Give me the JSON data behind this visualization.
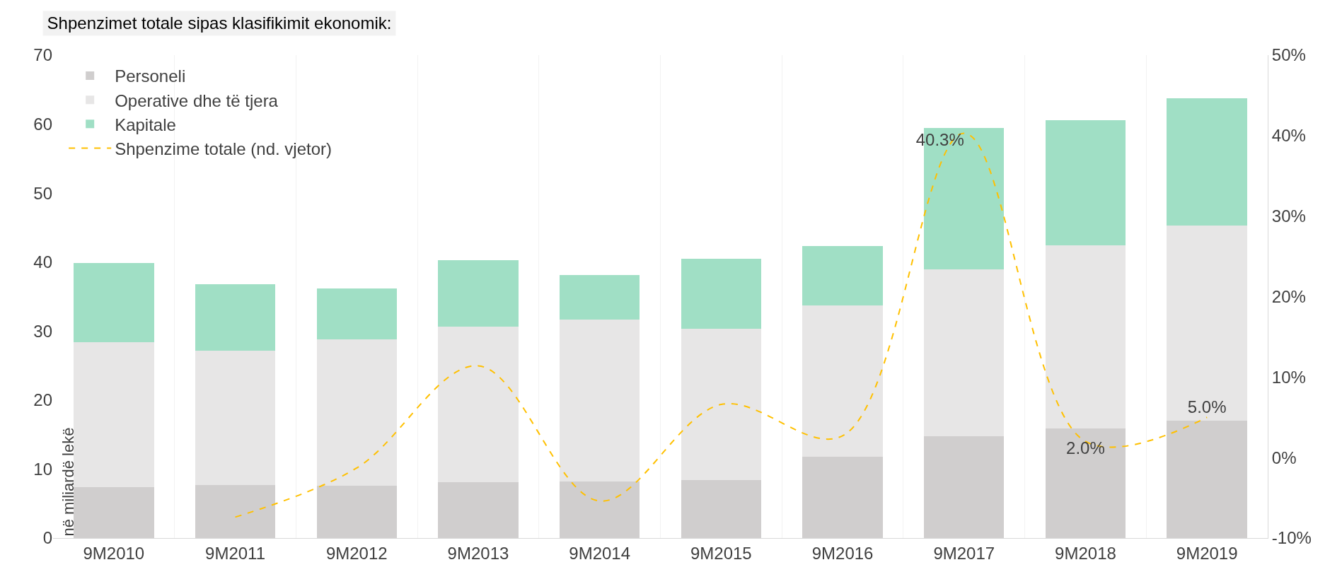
{
  "chart_data": {
    "type": "bar",
    "title": "Shpenzimet totale sipas klasifikimit ekonomik:",
    "ylabel": "në miliardë lekë",
    "stacked": true,
    "categories": [
      "9M2010",
      "9M2011",
      "9M2012",
      "9M2013",
      "9M2014",
      "9M2015",
      "9M2016",
      "9M2017",
      "9M2018",
      "9M2019"
    ],
    "series": [
      {
        "name": "Personeli",
        "color": "#d0cece",
        "values": [
          7.4,
          7.7,
          7.6,
          8.1,
          8.2,
          8.4,
          11.8,
          14.8,
          15.9,
          17.0
        ]
      },
      {
        "name": "Operative dhe të tjera",
        "color": "#e7e6e6",
        "values": [
          21.0,
          19.5,
          21.2,
          22.5,
          23.5,
          21.9,
          21.9,
          24.1,
          26.5,
          28.3
        ]
      },
      {
        "name": "Kapitale",
        "color": "#a0dfc5",
        "values": [
          11.5,
          9.6,
          7.4,
          9.7,
          6.4,
          10.2,
          8.6,
          20.5,
          18.2,
          18.4
        ]
      },
      {
        "name": "Shpenzime totale (nd. vjetor)",
        "type": "line",
        "axis": "y2",
        "color": "#ffc000",
        "line_style": "dashed",
        "marker": "none",
        "values": [
          null,
          -7.4,
          -1.3,
          11.4,
          -5.4,
          6.6,
          2.7,
          40.3,
          2.0,
          5.0
        ],
        "value_labels": [
          null,
          null,
          null,
          null,
          null,
          null,
          null,
          "40.3%",
          "2.0%",
          "5.0%"
        ]
      }
    ],
    "ylim": [
      0,
      70
    ],
    "yticks": [
      0,
      10,
      20,
      30,
      40,
      50,
      60,
      70
    ],
    "y2lim": [
      -10,
      50
    ],
    "y2ticks": [
      {
        "value": -10,
        "label": "-10%"
      },
      {
        "value": 0,
        "label": "0%"
      },
      {
        "value": 10,
        "label": "10%"
      },
      {
        "value": 20,
        "label": "20%"
      },
      {
        "value": 30,
        "label": "30%"
      },
      {
        "value": 40,
        "label": "40%"
      },
      {
        "value": 50,
        "label": "50%"
      }
    ],
    "grid": "x",
    "legend": "top left"
  }
}
